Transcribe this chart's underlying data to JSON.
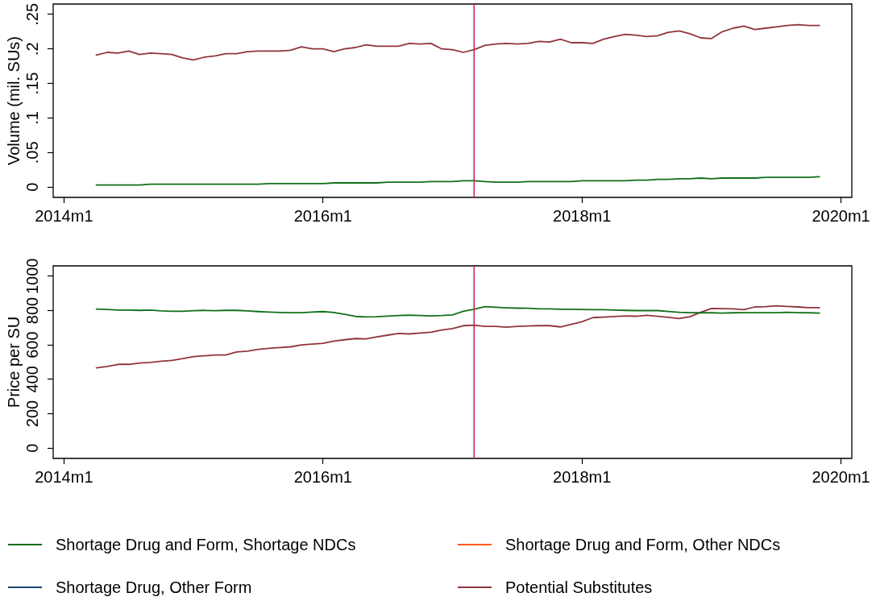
{
  "chart_data": [
    {
      "type": "line",
      "ylabel": "Volume (mil. SUs)",
      "x": [
        "2014-04",
        "2014-05",
        "2014-06",
        "2014-07",
        "2014-08",
        "2014-09",
        "2014-10",
        "2014-11",
        "2014-12",
        "2015-01",
        "2015-02",
        "2015-03",
        "2015-04",
        "2015-05",
        "2015-06",
        "2015-07",
        "2015-08",
        "2015-09",
        "2015-10",
        "2015-11",
        "2015-12",
        "2016-01",
        "2016-02",
        "2016-03",
        "2016-04",
        "2016-05",
        "2016-06",
        "2016-07",
        "2016-08",
        "2016-09",
        "2016-10",
        "2016-11",
        "2016-12",
        "2017-01",
        "2017-02",
        "2017-03",
        "2017-04",
        "2017-05",
        "2017-06",
        "2017-07",
        "2017-08",
        "2017-09",
        "2017-10",
        "2017-11",
        "2017-12",
        "2018-01",
        "2018-02",
        "2018-03",
        "2018-04",
        "2018-05",
        "2018-06",
        "2018-07",
        "2018-08",
        "2018-09",
        "2018-10",
        "2018-11",
        "2018-12",
        "2019-01",
        "2019-02",
        "2019-03",
        "2019-04",
        "2019-05",
        "2019-06",
        "2019-07",
        "2019-08",
        "2019-09",
        "2019-10",
        "2019-11"
      ],
      "series": [
        {
          "color": "#12701a",
          "values": [
            0.003,
            0.003,
            0.003,
            0.003,
            0.003,
            0.004,
            0.004,
            0.004,
            0.004,
            0.004,
            0.004,
            0.004,
            0.004,
            0.004,
            0.004,
            0.004,
            0.005,
            0.005,
            0.005,
            0.005,
            0.005,
            0.005,
            0.006,
            0.006,
            0.006,
            0.006,
            0.006,
            0.007,
            0.007,
            0.007,
            0.007,
            0.008,
            0.008,
            0.008,
            0.009,
            0.009,
            0.008,
            0.007,
            0.007,
            0.007,
            0.008,
            0.008,
            0.008,
            0.008,
            0.008,
            0.009,
            0.009,
            0.009,
            0.009,
            0.009,
            0.01,
            0.01,
            0.011,
            0.011,
            0.012,
            0.012,
            0.013,
            0.012,
            0.013,
            0.013,
            0.013,
            0.013,
            0.014,
            0.014,
            0.014,
            0.014,
            0.014,
            0.015
          ]
        },
        {
          "color": "#90353b",
          "values": [
            0.191,
            0.195,
            0.194,
            0.197,
            0.192,
            0.194,
            0.193,
            0.192,
            0.187,
            0.184,
            0.188,
            0.19,
            0.193,
            0.193,
            0.196,
            0.197,
            0.197,
            0.197,
            0.198,
            0.203,
            0.2,
            0.2,
            0.196,
            0.2,
            0.202,
            0.206,
            0.204,
            0.204,
            0.204,
            0.208,
            0.207,
            0.208,
            0.2,
            0.199,
            0.195,
            0.199,
            0.205,
            0.207,
            0.208,
            0.207,
            0.208,
            0.211,
            0.21,
            0.214,
            0.209,
            0.209,
            0.208,
            0.214,
            0.218,
            0.221,
            0.22,
            0.218,
            0.219,
            0.224,
            0.226,
            0.222,
            0.216,
            0.215,
            0.225,
            0.23,
            0.233,
            0.228,
            0.23,
            0.232,
            0.234,
            0.235,
            0.234,
            0.234
          ]
        }
      ],
      "xlim": [
        "2013-12",
        "2020-02"
      ],
      "xticks": [
        {
          "value": "2014-01",
          "label": "2014m1"
        },
        {
          "value": "2016-01",
          "label": "2016m1"
        },
        {
          "value": "2018-01",
          "label": "2018m1"
        },
        {
          "value": "2020-01",
          "label": "2020m1"
        }
      ],
      "ylim": [
        -0.015,
        0.265
      ],
      "yticks": [
        0,
        {
          "value": 0.05,
          "label": ".05"
        },
        {
          "value": 0.1,
          "label": ".1"
        },
        {
          "value": 0.15,
          "label": ".15"
        },
        {
          "value": 0.2,
          "label": ".2"
        },
        {
          "value": 0.25,
          "label": ".25"
        }
      ],
      "ref_lines": [
        {
          "axis": "x",
          "value": "2017-03",
          "color": "#cc1f45"
        }
      ]
    },
    {
      "type": "line",
      "ylabel": "Price per SU",
      "x": [
        "2014-04",
        "2014-05",
        "2014-06",
        "2014-07",
        "2014-08",
        "2014-09",
        "2014-10",
        "2014-11",
        "2014-12",
        "2015-01",
        "2015-02",
        "2015-03",
        "2015-04",
        "2015-05",
        "2015-06",
        "2015-07",
        "2015-08",
        "2015-09",
        "2015-10",
        "2015-11",
        "2015-12",
        "2016-01",
        "2016-02",
        "2016-03",
        "2016-04",
        "2016-05",
        "2016-06",
        "2016-07",
        "2016-08",
        "2016-09",
        "2016-10",
        "2016-11",
        "2016-12",
        "2017-01",
        "2017-02",
        "2017-03",
        "2017-04",
        "2017-05",
        "2017-06",
        "2017-07",
        "2017-08",
        "2017-09",
        "2017-10",
        "2017-11",
        "2017-12",
        "2018-01",
        "2018-02",
        "2018-03",
        "2018-04",
        "2018-05",
        "2018-06",
        "2018-07",
        "2018-08",
        "2018-09",
        "2018-10",
        "2018-11",
        "2018-12",
        "2019-01",
        "2019-02",
        "2019-03",
        "2019-04",
        "2019-05",
        "2019-06",
        "2019-07",
        "2019-08",
        "2019-09",
        "2019-10",
        "2019-11"
      ],
      "series": [
        {
          "name": "Shortage Drug and Form, Shortage NDCs",
          "color": "#12701a",
          "values": [
            809,
            806,
            803,
            803,
            801,
            803,
            798,
            796,
            796,
            799,
            801,
            799,
            801,
            801,
            798,
            794,
            791,
            789,
            788,
            788,
            791,
            794,
            789,
            778,
            766,
            763,
            764,
            768,
            771,
            773,
            771,
            769,
            771,
            775,
            796,
            808,
            823,
            819,
            816,
            814,
            813,
            810,
            810,
            808,
            808,
            806,
            805,
            805,
            803,
            801,
            800,
            800,
            800,
            795,
            790,
            788,
            787,
            787,
            785,
            787,
            788,
            788,
            788,
            788,
            790,
            788,
            787,
            785
          ]
        },
        {
          "name": "Shortage Drug and Form, Other NDCs",
          "color": "#ff5a1e",
          "values": [
            null,
            null,
            null,
            null,
            null,
            null,
            null,
            null,
            null,
            null,
            null,
            null,
            null,
            null,
            null,
            null,
            null,
            null,
            null,
            null,
            null,
            null,
            null,
            null,
            null,
            null,
            null,
            null,
            null,
            null,
            null,
            null,
            null,
            null,
            null,
            null,
            null,
            null,
            null,
            null,
            null,
            null,
            null,
            null,
            null,
            null,
            null,
            null,
            null,
            null,
            null,
            null,
            null,
            null,
            null,
            null,
            null,
            null,
            null,
            null,
            null,
            null,
            null,
            null,
            null,
            null,
            null,
            null
          ]
        },
        {
          "name": "Shortage Drug, Other Form",
          "color": "#1a476f",
          "values": [
            null,
            null,
            null,
            null,
            null,
            null,
            null,
            null,
            null,
            null,
            null,
            null,
            null,
            null,
            null,
            null,
            null,
            null,
            null,
            null,
            null,
            null,
            null,
            null,
            null,
            null,
            null,
            null,
            null,
            null,
            null,
            null,
            null,
            null,
            null,
            null,
            null,
            null,
            null,
            null,
            null,
            null,
            null,
            null,
            null,
            null,
            null,
            null,
            null,
            null,
            null,
            null,
            null,
            null,
            null,
            null,
            null,
            null,
            null,
            null,
            null,
            null,
            null,
            null,
            null,
            null,
            null,
            null
          ]
        },
        {
          "name": "Potential Substitutes",
          "color": "#90353b",
          "values": [
            467,
            475,
            487,
            487,
            495,
            498,
            505,
            510,
            520,
            532,
            537,
            542,
            542,
            559,
            564,
            574,
            580,
            585,
            589,
            600,
            605,
            610,
            622,
            630,
            637,
            635,
            647,
            657,
            667,
            664,
            669,
            674,
            687,
            695,
            712,
            715,
            708,
            708,
            703,
            708,
            710,
            712,
            712,
            705,
            720,
            735,
            759,
            762,
            765,
            769,
            767,
            772,
            767,
            761,
            754,
            764,
            790,
            812,
            811,
            810,
            805,
            821,
            823,
            827,
            824,
            821,
            817,
            817
          ]
        }
      ],
      "xlim": [
        "2013-12",
        "2020-02"
      ],
      "xticks": [
        {
          "value": "2014-01",
          "label": "2014m1"
        },
        {
          "value": "2016-01",
          "label": "2016m1"
        },
        {
          "value": "2018-01",
          "label": "2018m1"
        },
        {
          "value": "2020-01",
          "label": "2020m1"
        }
      ],
      "ylim": [
        -60,
        1060
      ],
      "yticks": [
        0,
        200,
        400,
        600,
        800,
        1000
      ],
      "ref_lines": [
        {
          "axis": "x",
          "value": "2017-03",
          "color": "#cc1f45"
        }
      ],
      "legend": "bottom"
    }
  ]
}
